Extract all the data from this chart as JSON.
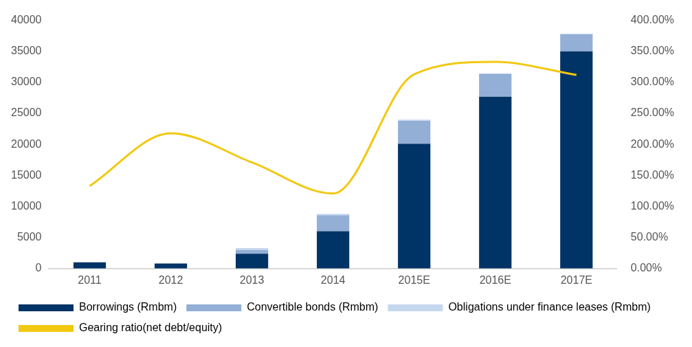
{
  "chart_data": {
    "type": "bar",
    "stacked": true,
    "categories": [
      "2011",
      "2012",
      "2013",
      "2014",
      "2015E",
      "2016E",
      "2017E"
    ],
    "series": [
      {
        "name": "Borrowings (Rmbm)",
        "color": "#003366",
        "values": [
          1000,
          800,
          2400,
          6000,
          20100,
          27700,
          35000
        ]
      },
      {
        "name": "Convertible bonds (Rmbm)",
        "color": "#93afd6",
        "values": [
          0,
          0,
          600,
          2600,
          3700,
          3700,
          2800
        ]
      },
      {
        "name": "Obligations under finance leases (Rmbm)",
        "color": "#c6d8ef",
        "values": [
          null,
          null,
          300,
          200,
          200,
          0,
          0
        ]
      },
      {
        "name": "Gearing ratio(net debt/equity)",
        "type": "line",
        "axis": "y2",
        "color": "#f2c811",
        "values": [
          133,
          218,
          171,
          121,
          313,
          333,
          312
        ]
      }
    ],
    "ylim": [
      0,
      40000
    ],
    "yticks": [
      0,
      5000,
      10000,
      15000,
      20000,
      25000,
      30000,
      35000,
      40000
    ],
    "y2lim": [
      0,
      400
    ],
    "y2ticks": [
      {
        "value": 0,
        "label": "0.00%"
      },
      {
        "value": 50,
        "label": "50.00%"
      },
      {
        "value": 100,
        "label": "100.00%"
      },
      {
        "value": 150,
        "label": "150.00%"
      },
      {
        "value": 200,
        "label": "200.00%"
      },
      {
        "value": 250,
        "label": "250.00%"
      },
      {
        "value": 300,
        "label": "300.00%"
      },
      {
        "value": 350,
        "label": "350.00%"
      },
      {
        "value": 400,
        "label": "400.00%"
      }
    ],
    "grid": false,
    "legend": "bottom",
    "marker": "none"
  }
}
